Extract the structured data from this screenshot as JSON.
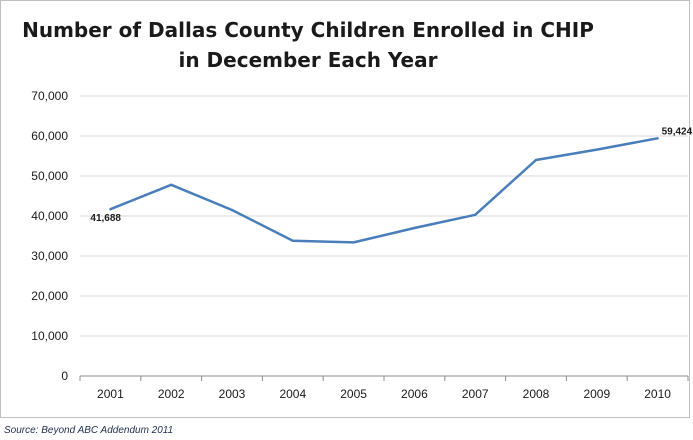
{
  "chart_data": {
    "type": "line",
    "title_line1": "Number of Dallas County Children Enrolled in CHIP",
    "title_line2": "in December Each Year",
    "xlabel": "",
    "ylabel": "",
    "categories": [
      "2001",
      "2002",
      "2003",
      "2004",
      "2005",
      "2006",
      "2007",
      "2008",
      "2009",
      "2010"
    ],
    "series": [
      {
        "values": [
          41688,
          47800,
          41500,
          33800,
          33400,
          37000,
          40300,
          54000,
          56600,
          59424
        ]
      }
    ],
    "ylim": [
      0,
      70000
    ],
    "yticks": [
      "0",
      "10,000",
      "20,000",
      "30,000",
      "40,000",
      "50,000",
      "60,000",
      "70,000"
    ],
    "data_labels": [
      {
        "index": 0,
        "text": "41,688"
      },
      {
        "index": 9,
        "text": "59,424"
      }
    ],
    "grid": true,
    "line_color": "#4a7ebb",
    "source": "Source: Beyond ABC Addendum 2011"
  }
}
